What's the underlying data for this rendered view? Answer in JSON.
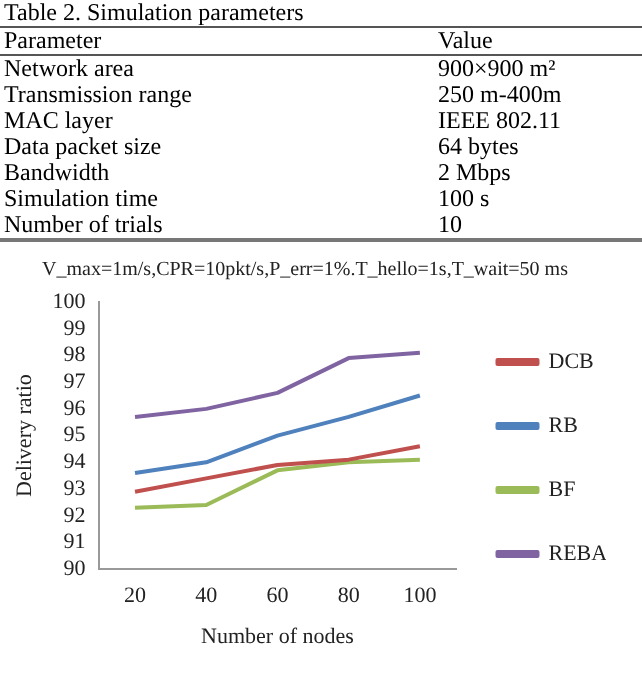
{
  "chart_data": [
    {
      "type": "other",
      "title": "Table 2. Simulation parameters",
      "annotations": [
        "Parameter",
        "Value",
        "Network area",
        "900×900 m²",
        "Transmission range",
        "250 m-400m",
        "MAC layer",
        "IEEE 802.11",
        "Data packet size",
        "64 bytes",
        "Bandwidth",
        "2 Mbps",
        "Simulation time",
        "100 s",
        "Number of trials",
        "10"
      ]
    },
    {
      "type": "line",
      "title": "V_max=1m/s,CPR=10pkt/s,P_err=1%.T_hello=1s,T_wait=50 ms",
      "xlabel": "Number of nodes",
      "ylabel": "Delivery ratio",
      "categories": [
        "20",
        "40",
        "60",
        "80",
        "100"
      ],
      "series": [
        {
          "name": "DCB",
          "color": "#c0504d",
          "values": [
            92.9,
            93.4,
            93.9,
            94.1,
            94.6
          ]
        },
        {
          "name": "RB",
          "color": "#4f81bd",
          "values": [
            93.6,
            94.0,
            95.0,
            95.7,
            96.5
          ]
        },
        {
          "name": "BF",
          "color": "#9bbb59",
          "values": [
            92.3,
            92.4,
            93.7,
            94.0,
            94.1
          ]
        },
        {
          "name": "REBA",
          "color": "#8064a2",
          "values": [
            95.7,
            96.0,
            96.6,
            97.9,
            98.1
          ]
        }
      ],
      "ylim": [
        90,
        100
      ],
      "yticks": [
        90,
        91,
        92,
        93,
        94,
        95,
        96,
        97,
        98,
        99,
        100
      ],
      "grid": false,
      "legend": "right",
      "marker": "none"
    }
  ]
}
